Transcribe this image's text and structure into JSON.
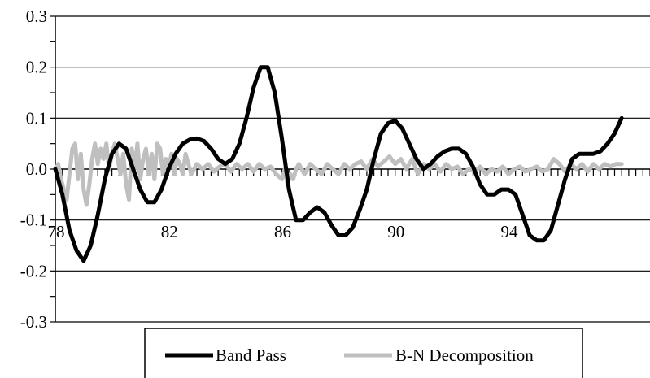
{
  "chart_data": {
    "type": "line",
    "title": "",
    "xlabel": "",
    "ylabel": "",
    "xlim": [
      78,
      99
    ],
    "ylim": [
      -0.3,
      0.3
    ],
    "y_ticks": [
      -0.3,
      -0.2,
      -0.1,
      0.0,
      0.1,
      0.2,
      0.3
    ],
    "y_tick_labels": [
      "-0.3",
      "-0.2",
      "-0.1",
      "0.0",
      "0.1",
      "0.2",
      "0.3"
    ],
    "x_tick_labels": [
      {
        "x": 78,
        "label": "78"
      },
      {
        "x": 82,
        "label": "82"
      },
      {
        "x": 86,
        "label": "86"
      },
      {
        "x": 90,
        "label": "90"
      },
      {
        "x": 94,
        "label": "94"
      }
    ],
    "grid": true,
    "legend_position": "bottom",
    "series": [
      {
        "name": "Band Pass",
        "color": "#000000",
        "points": [
          [
            78.0,
            0.0
          ],
          [
            78.25,
            -0.05
          ],
          [
            78.5,
            -0.12
          ],
          [
            78.75,
            -0.16
          ],
          [
            79.0,
            -0.18
          ],
          [
            79.25,
            -0.15
          ],
          [
            79.5,
            -0.09
          ],
          [
            79.75,
            -0.02
          ],
          [
            80.0,
            0.03
          ],
          [
            80.25,
            0.05
          ],
          [
            80.5,
            0.04
          ],
          [
            80.75,
            0.0
          ],
          [
            81.0,
            -0.04
          ],
          [
            81.25,
            -0.065
          ],
          [
            81.5,
            -0.065
          ],
          [
            81.75,
            -0.04
          ],
          [
            82.0,
            0.0
          ],
          [
            82.25,
            0.03
          ],
          [
            82.5,
            0.05
          ],
          [
            82.75,
            0.058
          ],
          [
            83.0,
            0.06
          ],
          [
            83.25,
            0.055
          ],
          [
            83.5,
            0.04
          ],
          [
            83.75,
            0.02
          ],
          [
            84.0,
            0.01
          ],
          [
            84.25,
            0.02
          ],
          [
            84.5,
            0.05
          ],
          [
            84.75,
            0.1
          ],
          [
            85.0,
            0.16
          ],
          [
            85.25,
            0.2
          ],
          [
            85.5,
            0.2
          ],
          [
            85.75,
            0.15
          ],
          [
            86.0,
            0.06
          ],
          [
            86.25,
            -0.04
          ],
          [
            86.5,
            -0.1
          ],
          [
            86.75,
            -0.1
          ],
          [
            87.0,
            -0.085
          ],
          [
            87.25,
            -0.075
          ],
          [
            87.5,
            -0.085
          ],
          [
            87.75,
            -0.11
          ],
          [
            88.0,
            -0.13
          ],
          [
            88.25,
            -0.13
          ],
          [
            88.5,
            -0.115
          ],
          [
            88.75,
            -0.08
          ],
          [
            89.0,
            -0.04
          ],
          [
            89.25,
            0.02
          ],
          [
            89.5,
            0.07
          ],
          [
            89.75,
            0.09
          ],
          [
            90.0,
            0.095
          ],
          [
            90.25,
            0.08
          ],
          [
            90.5,
            0.05
          ],
          [
            90.75,
            0.02
          ],
          [
            91.0,
            0.0
          ],
          [
            91.25,
            0.01
          ],
          [
            91.5,
            0.025
          ],
          [
            91.75,
            0.035
          ],
          [
            92.0,
            0.04
          ],
          [
            92.25,
            0.04
          ],
          [
            92.5,
            0.03
          ],
          [
            92.75,
            0.005
          ],
          [
            93.0,
            -0.03
          ],
          [
            93.25,
            -0.05
          ],
          [
            93.5,
            -0.05
          ],
          [
            93.75,
            -0.04
          ],
          [
            94.0,
            -0.04
          ],
          [
            94.25,
            -0.05
          ],
          [
            94.5,
            -0.09
          ],
          [
            94.75,
            -0.13
          ],
          [
            95.0,
            -0.14
          ],
          [
            95.25,
            -0.14
          ],
          [
            95.5,
            -0.12
          ],
          [
            95.75,
            -0.07
          ],
          [
            96.0,
            -0.02
          ],
          [
            96.25,
            0.02
          ],
          [
            96.5,
            0.03
          ],
          [
            96.75,
            0.03
          ],
          [
            97.0,
            0.03
          ],
          [
            97.25,
            0.035
          ],
          [
            97.5,
            0.05
          ],
          [
            97.75,
            0.07
          ],
          [
            98.0,
            0.1
          ]
        ]
      },
      {
        "name": "B-N Decomposition",
        "color": "#bfbfbf",
        "points": [
          [
            78.0,
            0.0
          ],
          [
            78.1,
            0.01
          ],
          [
            78.2,
            -0.02
          ],
          [
            78.3,
            -0.04
          ],
          [
            78.4,
            -0.06
          ],
          [
            78.5,
            -0.01
          ],
          [
            78.6,
            0.04
          ],
          [
            78.7,
            0.05
          ],
          [
            78.8,
            -0.02
          ],
          [
            78.9,
            0.03
          ],
          [
            79.0,
            -0.04
          ],
          [
            79.1,
            -0.07
          ],
          [
            79.2,
            -0.03
          ],
          [
            79.3,
            0.02
          ],
          [
            79.4,
            0.05
          ],
          [
            79.5,
            0.01
          ],
          [
            79.6,
            0.04
          ],
          [
            79.7,
            0.02
          ],
          [
            79.8,
            0.05
          ],
          [
            79.9,
            0.0
          ],
          [
            80.0,
            0.03
          ],
          [
            80.1,
            0.05
          ],
          [
            80.2,
            0.02
          ],
          [
            80.3,
            -0.01
          ],
          [
            80.4,
            0.03
          ],
          [
            80.5,
            -0.03
          ],
          [
            80.6,
            -0.06
          ],
          [
            80.7,
            0.04
          ],
          [
            80.8,
            0.0
          ],
          [
            80.9,
            0.05
          ],
          [
            81.0,
            -0.02
          ],
          [
            81.1,
            0.02
          ],
          [
            81.2,
            0.04
          ],
          [
            81.3,
            -0.01
          ],
          [
            81.4,
            0.03
          ],
          [
            81.5,
            -0.02
          ],
          [
            81.6,
            0.05
          ],
          [
            81.7,
            0.04
          ],
          [
            81.8,
            -0.01
          ],
          [
            81.9,
            0.02
          ],
          [
            82.0,
            0.0
          ],
          [
            82.1,
            0.03
          ],
          [
            82.2,
            -0.01
          ],
          [
            82.3,
            0.02
          ],
          [
            82.4,
            0.01
          ],
          [
            82.5,
            -0.01
          ],
          [
            82.6,
            0.03
          ],
          [
            82.7,
            0.01
          ],
          [
            82.8,
            -0.01
          ],
          [
            82.9,
            0.0
          ],
          [
            83.0,
            0.01
          ],
          [
            83.2,
            0.0
          ],
          [
            83.4,
            0.01
          ],
          [
            83.6,
            -0.005
          ],
          [
            83.8,
            0.005
          ],
          [
            84.0,
            0.01
          ],
          [
            84.2,
            -0.005
          ],
          [
            84.4,
            0.01
          ],
          [
            84.6,
            0.0
          ],
          [
            84.8,
            0.01
          ],
          [
            85.0,
            -0.005
          ],
          [
            85.2,
            0.01
          ],
          [
            85.4,
            0.0
          ],
          [
            85.6,
            0.005
          ],
          [
            85.8,
            -0.01
          ],
          [
            86.0,
            -0.02
          ],
          [
            86.1,
            0.0
          ],
          [
            86.2,
            -0.03
          ],
          [
            86.3,
            -0.01
          ],
          [
            86.4,
            -0.02
          ],
          [
            86.5,
            0.0
          ],
          [
            86.6,
            0.01
          ],
          [
            86.8,
            -0.01
          ],
          [
            87.0,
            0.01
          ],
          [
            87.2,
            0.0
          ],
          [
            87.4,
            -0.01
          ],
          [
            87.6,
            0.01
          ],
          [
            87.8,
            0.0
          ],
          [
            88.0,
            -0.01
          ],
          [
            88.2,
            0.01
          ],
          [
            88.4,
            0.0
          ],
          [
            88.6,
            0.01
          ],
          [
            88.8,
            0.015
          ],
          [
            89.0,
            0.0
          ],
          [
            89.2,
            0.02
          ],
          [
            89.4,
            0.005
          ],
          [
            89.6,
            0.015
          ],
          [
            89.8,
            0.025
          ],
          [
            90.0,
            0.01
          ],
          [
            90.2,
            0.02
          ],
          [
            90.4,
            0.0
          ],
          [
            90.6,
            0.02
          ],
          [
            90.8,
            -0.01
          ],
          [
            91.0,
            0.01
          ],
          [
            91.2,
            0.0
          ],
          [
            91.4,
            0.01
          ],
          [
            91.6,
            -0.005
          ],
          [
            91.8,
            0.01
          ],
          [
            92.0,
            0.0
          ],
          [
            92.2,
            0.005
          ],
          [
            92.4,
            -0.01
          ],
          [
            92.6,
            0.0
          ],
          [
            92.8,
            -0.005
          ],
          [
            93.0,
            0.005
          ],
          [
            93.2,
            -0.01
          ],
          [
            93.4,
            0.0
          ],
          [
            93.6,
            -0.005
          ],
          [
            93.8,
            0.005
          ],
          [
            94.0,
            -0.01
          ],
          [
            94.2,
            0.0
          ],
          [
            94.4,
            0.005
          ],
          [
            94.6,
            -0.005
          ],
          [
            94.8,
            0.0
          ],
          [
            95.0,
            0.005
          ],
          [
            95.2,
            -0.005
          ],
          [
            95.4,
            0.0
          ],
          [
            95.6,
            0.02
          ],
          [
            95.8,
            0.01
          ],
          [
            96.0,
            -0.005
          ],
          [
            96.2,
            0.01
          ],
          [
            96.4,
            0.0
          ],
          [
            96.6,
            0.01
          ],
          [
            96.8,
            -0.005
          ],
          [
            97.0,
            0.01
          ],
          [
            97.2,
            0.0
          ],
          [
            97.4,
            0.01
          ],
          [
            97.6,
            0.005
          ],
          [
            97.8,
            0.01
          ],
          [
            98.0,
            0.01
          ]
        ]
      }
    ]
  }
}
